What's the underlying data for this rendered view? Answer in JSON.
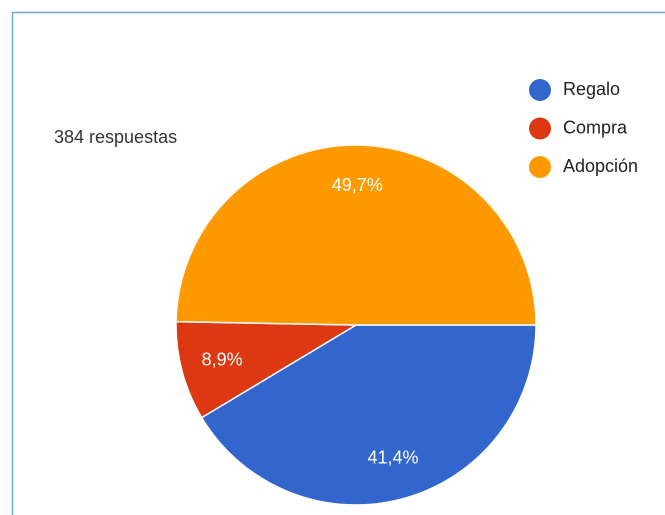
{
  "chart_data": {
    "type": "pie",
    "subtitle": "384 respuestas",
    "categories": [
      "Regalo",
      "Compra",
      "Adopción"
    ],
    "values": [
      41.4,
      8.9,
      49.7
    ],
    "value_labels": [
      "41,4%",
      "8,9%",
      "49,7%"
    ],
    "colors": [
      "#3366cc",
      "#dc3912",
      "#ff9900"
    ],
    "legend": "right"
  }
}
